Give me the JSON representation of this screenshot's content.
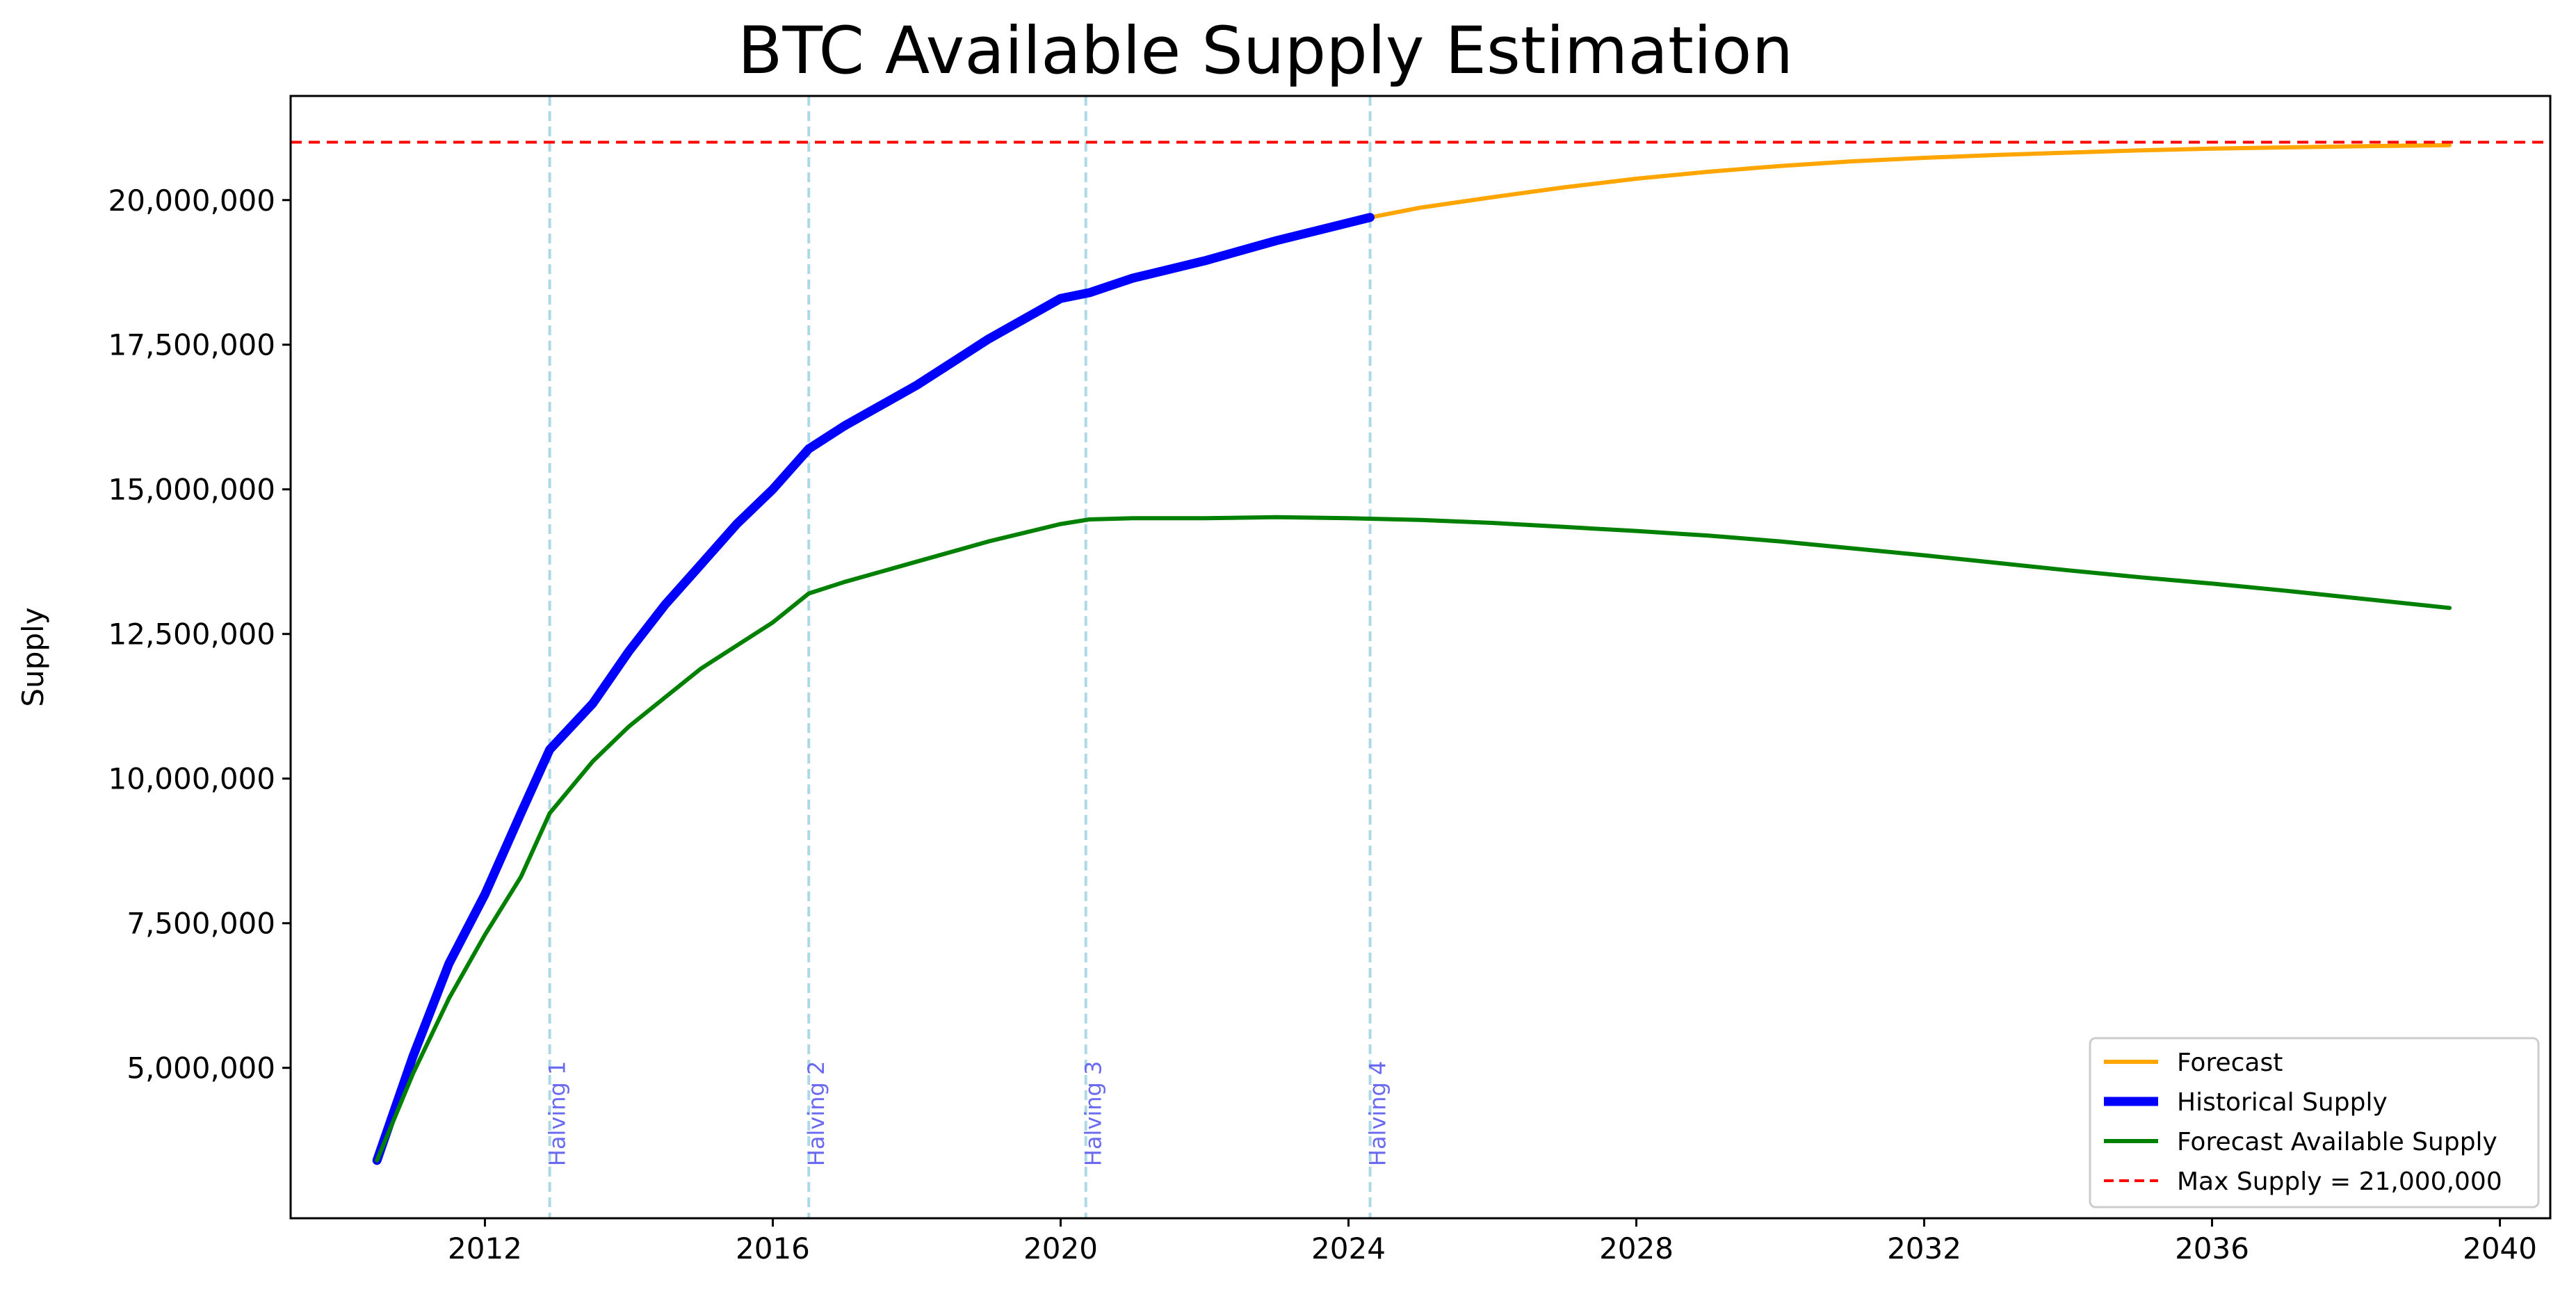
{
  "chart_data": {
    "type": "line",
    "title": "BTC Available Supply Estimation",
    "xlabel": "",
    "ylabel": "Supply",
    "xlim": [
      2009.3,
      2040.7
    ],
    "ylim": [
      2400000,
      21800000
    ],
    "x_ticks": [
      2012,
      2016,
      2020,
      2024,
      2028,
      2032,
      2036,
      2040
    ],
    "x_tick_labels": [
      "2012",
      "2016",
      "2020",
      "2024",
      "2028",
      "2032",
      "2036",
      "2040"
    ],
    "y_ticks": [
      5000000,
      7500000,
      10000000,
      12500000,
      15000000,
      17500000,
      20000000
    ],
    "y_tick_labels": [
      "5,000,000",
      "7,500,000",
      "10,000,000",
      "12,500,000",
      "15,000,000",
      "17,500,000",
      "20,000,000"
    ],
    "grid": false,
    "legend_position": "lower-right",
    "series": [
      {
        "name": "Forecast",
        "color": "#ffa500",
        "style": "solid",
        "x": [
          2024.3,
          2025,
          2026,
          2027,
          2028,
          2029,
          2030,
          2031,
          2032,
          2033,
          2034,
          2035,
          2036,
          2037,
          2038,
          2039.3
        ],
        "y": [
          19700000,
          19870000,
          20050000,
          20220000,
          20370000,
          20490000,
          20590000,
          20670000,
          20730000,
          20780000,
          20820000,
          20860000,
          20890000,
          20910000,
          20930000,
          20950000
        ]
      },
      {
        "name": "Historical Supply",
        "color": "#0000ff",
        "style": "solid-thick",
        "x": [
          2010.5,
          2011.0,
          2011.5,
          2012.0,
          2012.5,
          2012.9,
          2013.5,
          2014.0,
          2014.5,
          2015.0,
          2015.5,
          2016.0,
          2016.5,
          2017.0,
          2018.0,
          2019.0,
          2020.0,
          2020.4,
          2021.0,
          2022.0,
          2023.0,
          2024.3
        ],
        "y": [
          3400000,
          5200000,
          6800000,
          8000000,
          9400000,
          10500000,
          11300000,
          12200000,
          13000000,
          13700000,
          14400000,
          15000000,
          15700000,
          16100000,
          16800000,
          17600000,
          18300000,
          18400000,
          18650000,
          18950000,
          19300000,
          19700000
        ]
      },
      {
        "name": "Forecast Available Supply",
        "color": "#008000",
        "style": "solid",
        "x": [
          2010.5,
          2011.0,
          2011.5,
          2012.0,
          2012.5,
          2012.9,
          2013.5,
          2014.0,
          2014.5,
          2015.0,
          2015.5,
          2016.0,
          2016.5,
          2017.0,
          2018.0,
          2019.0,
          2020.0,
          2020.4,
          2021.0,
          2022.0,
          2023.0,
          2024.0,
          2025.0,
          2026.0,
          2027.0,
          2028.0,
          2029.0,
          2030.0,
          2031.0,
          2032.0,
          2033.0,
          2034.0,
          2035.0,
          2036.0,
          2037.0,
          2038.0,
          2039.3
        ],
        "y": [
          3400000,
          4900000,
          6200000,
          7300000,
          8300000,
          9400000,
          10300000,
          10900000,
          11400000,
          11900000,
          12300000,
          12700000,
          13200000,
          13400000,
          13750000,
          14100000,
          14400000,
          14480000,
          14500000,
          14500000,
          14520000,
          14500000,
          14470000,
          14420000,
          14350000,
          14280000,
          14200000,
          14100000,
          13980000,
          13860000,
          13730000,
          13600000,
          13480000,
          13370000,
          13250000,
          13120000,
          12950000
        ]
      },
      {
        "name": "Max Supply = 21,000,000",
        "color": "#ff0000",
        "style": "dashed",
        "y_const": 21000000
      }
    ],
    "annotations": [
      {
        "label": "Halving 1",
        "x": 2012.9
      },
      {
        "label": "Halving 2",
        "x": 2016.5
      },
      {
        "label": "Halving 3",
        "x": 2020.35
      },
      {
        "label": "Halving 4",
        "x": 2024.3
      }
    ],
    "annotation_label_y": 3300000,
    "annotation_line_color": "#add8e6",
    "annotation_text_color": "#6a6af0"
  }
}
